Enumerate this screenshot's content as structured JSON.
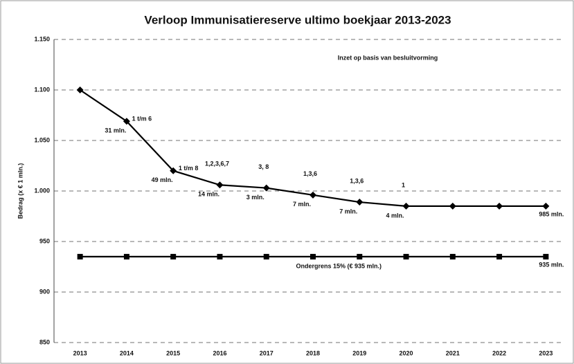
{
  "chart_data": {
    "type": "line",
    "title": "Verloop Immunisatiereserve ultimo boekjaar 2013-2023",
    "y_label": "Bedrag (x € 1 mln.)",
    "note": "Inzet op basis van besluitvorming",
    "categories": [
      "2013",
      "2014",
      "2015",
      "2016",
      "2017",
      "2018",
      "2019",
      "2020",
      "2021",
      "2022",
      "2023"
    ],
    "series": [
      {
        "color": "#000000",
        "marker": "diamond",
        "end_label": "985 mln.",
        "values": [
          1100,
          1069,
          1020,
          1006,
          1003,
          996,
          989,
          985,
          985,
          985,
          985
        ]
      },
      {
        "name": "Ondergrens 15% (€ 935 mln.)",
        "color": "#000000",
        "marker": "square",
        "end_label": "935 mln.",
        "values": [
          935,
          935,
          935,
          935,
          935,
          935,
          935,
          935,
          935,
          935,
          935
        ]
      }
    ],
    "point_notes": [
      null,
      "1 t/m 6",
      "1 t/m 8",
      "1,2,3,6,7",
      "3, 8",
      "1,3,6",
      "1,3,6",
      "1",
      null,
      null,
      null
    ],
    "change_labels": [
      null,
      "31 mln.",
      "49 mln.",
      "14 mln.",
      "3 mln.",
      "7 mln.",
      "7 mln.",
      "4 mln.",
      null,
      null,
      null
    ],
    "ylim": [
      850,
      1150
    ],
    "yticks": [
      850,
      900,
      950,
      {
        "value": 1000,
        "label": "1.000"
      },
      {
        "value": 1050,
        "label": "1.050"
      },
      {
        "value": 1100,
        "label": "1.100"
      },
      {
        "value": 1150,
        "label": "1.150"
      }
    ],
    "grid": true
  }
}
